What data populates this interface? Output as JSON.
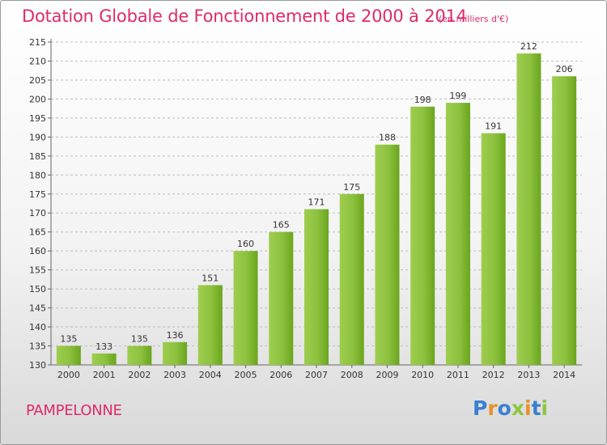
{
  "header": {
    "title": "Dotation Globale de Fonctionnement de 2000 à 2014",
    "unit": "(en milliers d'€)"
  },
  "footer": {
    "commune": "PAMPELONNE",
    "logo": "Proxiti"
  },
  "colors": {
    "title": "#de2a6c",
    "bar_light": "#a6d35a",
    "bar_dark": "#6aa51d",
    "logo": [
      "#3a7fd0",
      "#e8912a",
      "#3a7fd0",
      "#8cc63f",
      "#e8912a",
      "#3a7fd0",
      "#8cc63f"
    ]
  },
  "chart_data": {
    "type": "bar",
    "title": "Dotation Globale de Fonctionnement de 2000 à 2014",
    "subtitle": "(en milliers d'€)",
    "categories": [
      "2000",
      "2001",
      "2002",
      "2003",
      "2004",
      "2005",
      "2006",
      "2007",
      "2008",
      "2009",
      "2010",
      "2011",
      "2012",
      "2013",
      "2014"
    ],
    "values": [
      135,
      133,
      135,
      136,
      151,
      160,
      165,
      171,
      175,
      188,
      198,
      199,
      191,
      212,
      206
    ],
    "ylim": [
      130,
      215
    ],
    "yticks": [
      130,
      135,
      140,
      145,
      150,
      155,
      160,
      165,
      170,
      175,
      180,
      185,
      190,
      195,
      200,
      205,
      210,
      215
    ],
    "xlabel": "",
    "ylabel": "",
    "grid": true,
    "legend": "none"
  }
}
